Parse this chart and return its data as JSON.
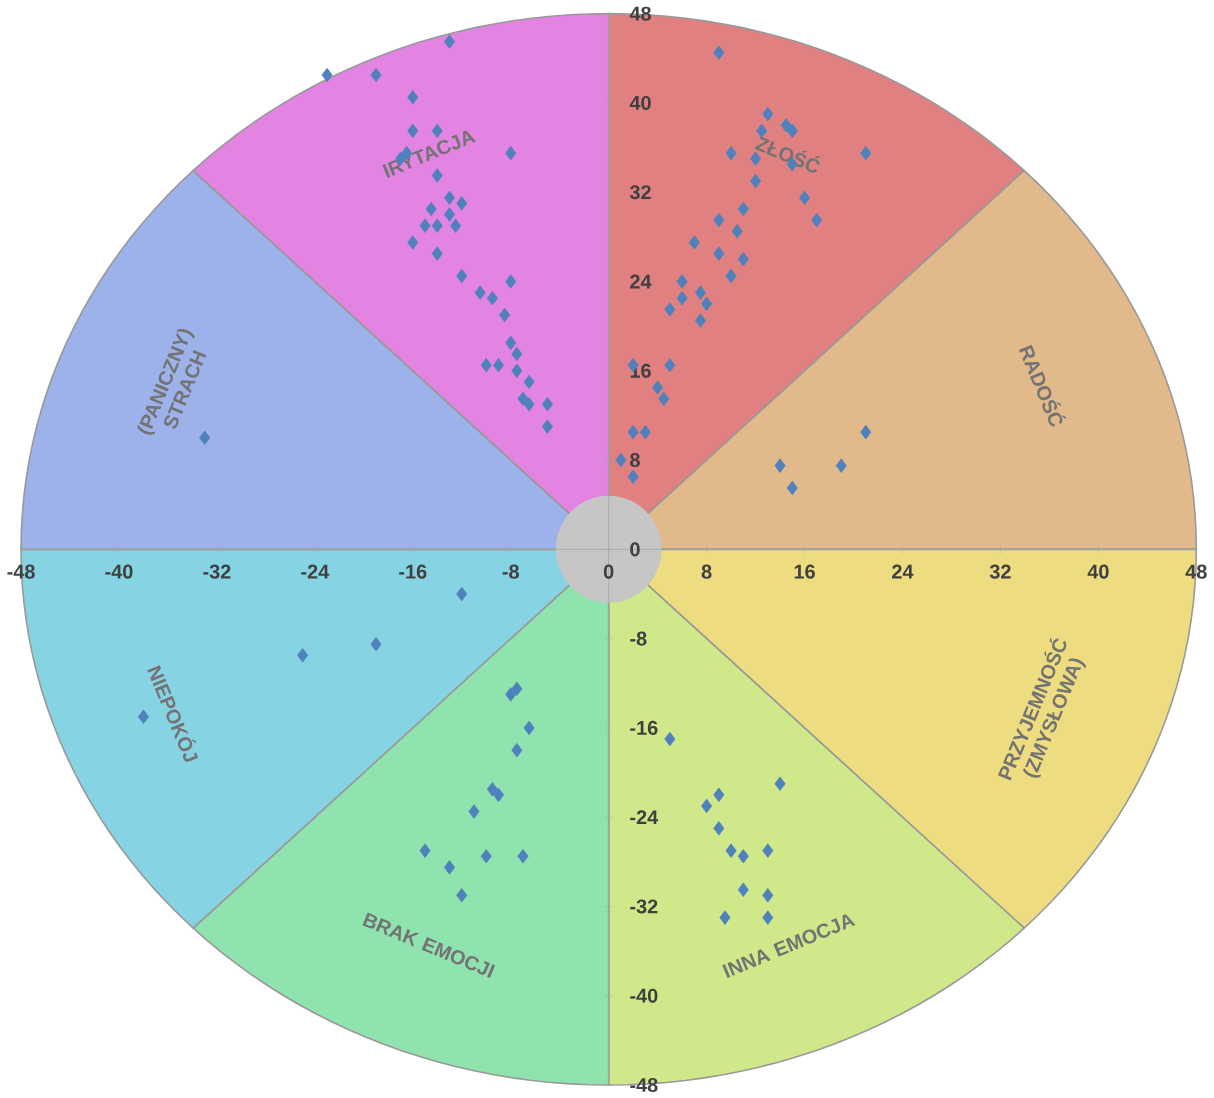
{
  "chart_data": {
    "type": "scatter",
    "x": [
      -13,
      -19,
      -23,
      -16,
      -16,
      -14,
      -8,
      -16.5,
      -17,
      -14,
      -13,
      -12,
      -14.5,
      -13,
      -15,
      -14,
      -12.5,
      -16,
      -14,
      -12,
      -10.5,
      -9.5,
      -8,
      -8.5,
      -10,
      -9,
      -8,
      -7.5,
      -7.5,
      -6.5,
      -7,
      -6.5,
      -5,
      -5,
      -33,
      9,
      13,
      14.5,
      15,
      12.5,
      21,
      10,
      12,
      15,
      12,
      16,
      17,
      11,
      9,
      10.5,
      7,
      9,
      11,
      10,
      6,
      7.5,
      6,
      8,
      5,
      7.5,
      2,
      5,
      4,
      4.5,
      2,
      3,
      21,
      1,
      14,
      19,
      15,
      2,
      -12,
      -19,
      -25,
      -38,
      -7.5,
      -8,
      -6.5,
      -7.5,
      -9.5,
      -9,
      -11,
      -15,
      -13,
      -10,
      -7,
      -12,
      5,
      14,
      9,
      8,
      9,
      10,
      11,
      13,
      11,
      13,
      9.5,
      13
    ],
    "values": [
      45.5,
      42.5,
      42.5,
      40.5,
      37.5,
      37.5,
      35.5,
      35.5,
      35,
      33.5,
      31.5,
      31,
      30.5,
      30,
      29,
      29,
      29,
      27.5,
      26.5,
      24.5,
      23,
      22.5,
      24,
      21,
      16.5,
      16.5,
      18.5,
      17.5,
      16,
      15,
      13.5,
      13,
      13,
      11,
      10,
      44.5,
      39,
      38,
      37.5,
      37.5,
      35.5,
      35.5,
      35,
      34.5,
      33,
      31.5,
      29.5,
      30.5,
      29.5,
      28.5,
      27.5,
      26.5,
      26,
      24.5,
      24,
      23,
      22.5,
      22,
      21.5,
      20.5,
      16.5,
      16.5,
      14.5,
      13.5,
      10.5,
      10.5,
      10.5,
      8,
      7.5,
      7.5,
      5.5,
      6.5,
      -4,
      -8.5,
      -9.5,
      -15,
      -12.5,
      -13,
      -16,
      -18,
      -21.5,
      -22,
      -23.5,
      -27,
      -28.5,
      -27.5,
      -27.5,
      -31,
      -17,
      -21,
      -22,
      -23,
      -25,
      -27,
      -27.5,
      -27,
      -30.5,
      -31,
      -33,
      -33
    ],
    "color": "#4f81bd",
    "marker": "diamond",
    "xlim": [
      -48,
      48
    ],
    "ylim": [
      -48,
      48
    ],
    "xticks": [
      -48,
      -40,
      -32,
      -24,
      -16,
      -8,
      0,
      8,
      16,
      24,
      32,
      40,
      48
    ],
    "yticks": [
      -48,
      -40,
      -32,
      -24,
      -16,
      -8,
      0,
      8,
      16,
      24,
      32,
      40,
      48
    ],
    "annotations": [
      "ZŁOŚĆ",
      "RADOŚĆ",
      "PRZYJEMNOŚĆ (ZMYSŁOWA)",
      "INNA EMOCJA",
      "BRAK EMOCJI",
      "NIEPOKÓJ",
      "(PANICZNY) STRACH",
      "IRYTACJA"
    ]
  }
}
